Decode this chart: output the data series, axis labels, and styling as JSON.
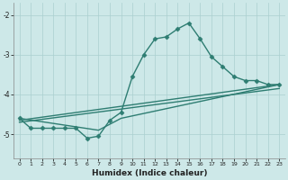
{
  "xlabel": "Humidex (Indice chaleur)",
  "ylabel": "",
  "bg_color": "#cde8e8",
  "line_color": "#2e7d72",
  "grid_color": "#aacfcf",
  "xlim": [
    -0.5,
    23.5
  ],
  "ylim": [
    -5.6,
    -1.7
  ],
  "yticks": [
    -5,
    -4,
    -3,
    -2
  ],
  "xticks": [
    0,
    1,
    2,
    3,
    4,
    5,
    6,
    7,
    8,
    9,
    10,
    11,
    12,
    13,
    14,
    15,
    16,
    17,
    18,
    19,
    20,
    21,
    22,
    23
  ],
  "series": [
    {
      "x": [
        0,
        1,
        2,
        3,
        4,
        5,
        6,
        7,
        8,
        9,
        10,
        11,
        12,
        13,
        14,
        15,
        16,
        17,
        18,
        19,
        20,
        21,
        22,
        23
      ],
      "y": [
        -4.6,
        -4.85,
        -4.85,
        -4.85,
        -4.85,
        -4.85,
        -5.1,
        -5.05,
        -4.65,
        -4.45,
        -3.55,
        -3.0,
        -2.6,
        -2.55,
        -2.35,
        -2.2,
        -2.6,
        -3.05,
        -3.3,
        -3.55,
        -3.65,
        -3.65,
        -3.75,
        -3.75
      ],
      "marker": "D",
      "markersize": 2.5,
      "linewidth": 1.0
    },
    {
      "x": [
        0,
        7,
        9,
        23
      ],
      "y": [
        -4.6,
        -4.9,
        -4.6,
        -3.75
      ],
      "marker": null,
      "markersize": 0,
      "linewidth": 1.0
    },
    {
      "x": [
        0,
        23
      ],
      "y": [
        -4.65,
        -3.75
      ],
      "marker": null,
      "markersize": 0,
      "linewidth": 1.0
    },
    {
      "x": [
        0,
        23
      ],
      "y": [
        -4.7,
        -3.85
      ],
      "marker": null,
      "markersize": 0,
      "linewidth": 1.0
    }
  ]
}
